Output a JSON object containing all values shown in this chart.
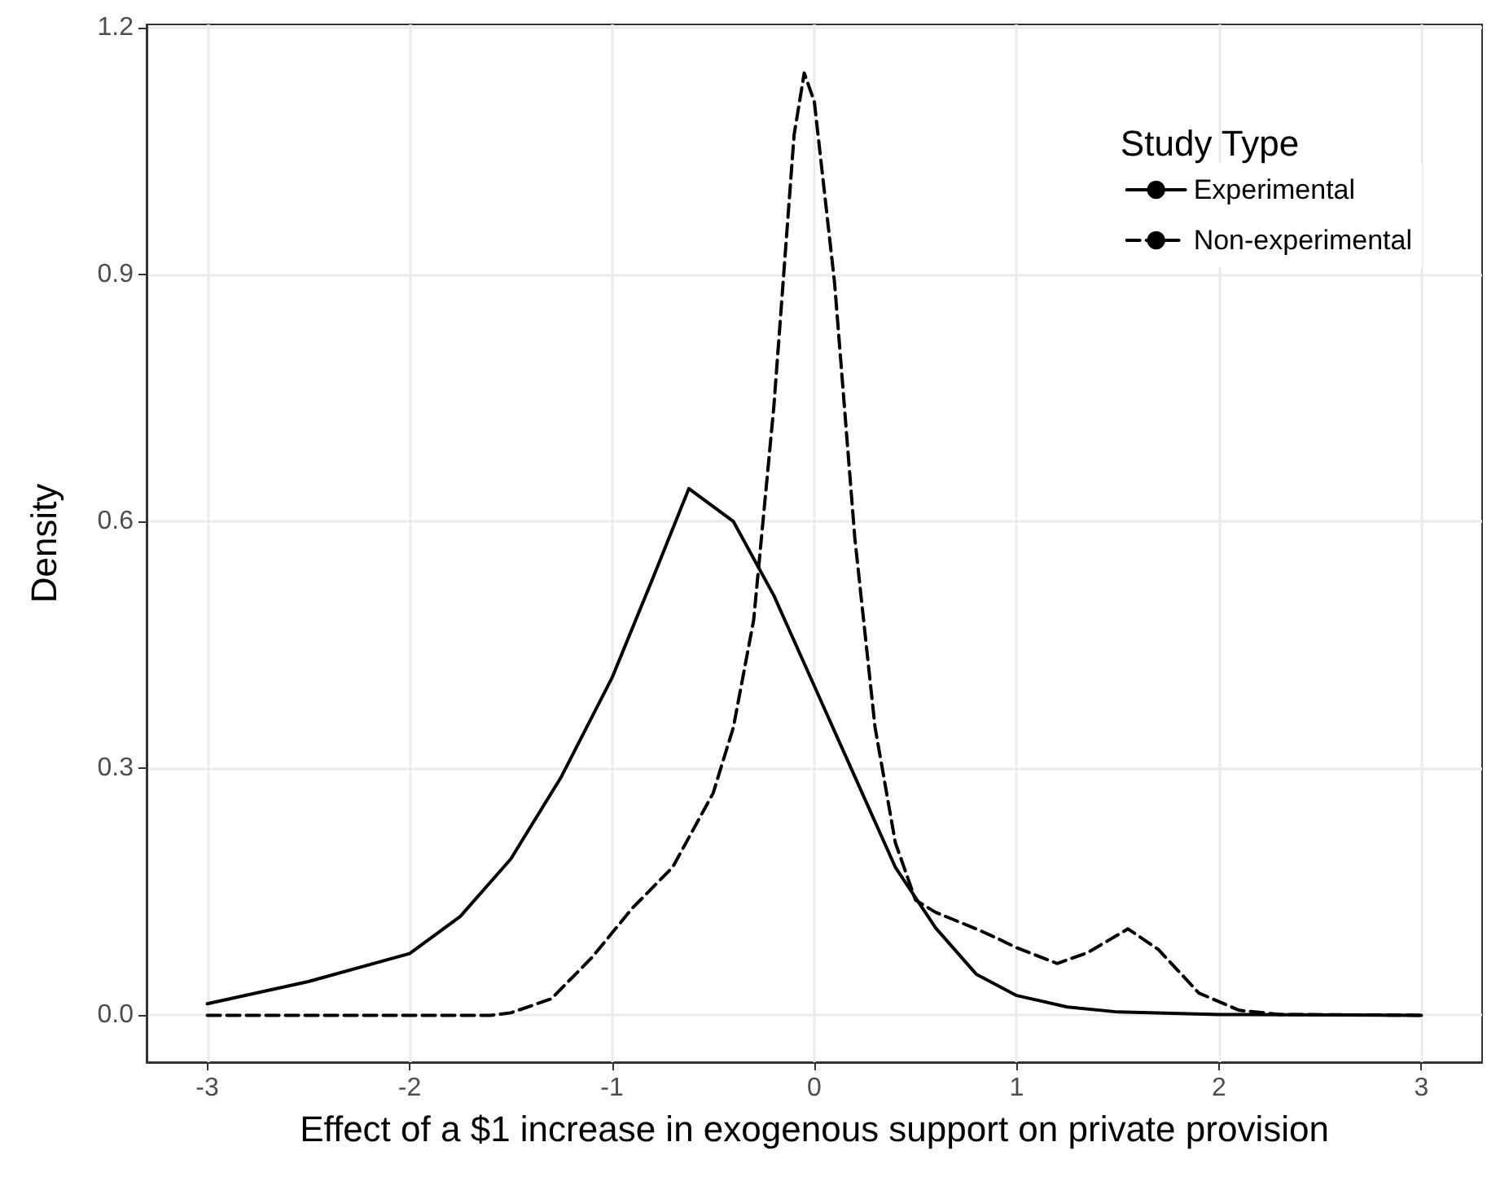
{
  "chart_data": {
    "type": "line",
    "xlabel": "Effect of a $1 increase in exogenous support on private provision",
    "ylabel": "Density",
    "legend_title": "Study Type",
    "legend": "top right",
    "grid": true,
    "marker": "none",
    "xlim": [
      -3.3,
      3.3
    ],
    "ylim": [
      -0.057,
      1.204
    ],
    "xticks": [
      -3,
      -2,
      -1,
      0,
      1,
      2,
      3
    ],
    "yticks": [
      {
        "value": 0,
        "label": "0.0"
      },
      {
        "value": 0.3,
        "label": "0.3"
      },
      {
        "value": 0.6,
        "label": "0.6"
      },
      {
        "value": 0.9,
        "label": "0.9"
      },
      {
        "value": 1.2,
        "label": "1.2"
      }
    ],
    "series": [
      {
        "name": "Experimental",
        "color": "#000000",
        "line_style": "solid",
        "x": [
          -3,
          -2.5,
          -2,
          -1.75,
          -1.5,
          -1.25,
          -1,
          -0.8,
          -0.62,
          -0.4,
          -0.2,
          0,
          0.2,
          0.4,
          0.6,
          0.8,
          1,
          1.25,
          1.5,
          2,
          3
        ],
        "values": [
          0.014,
          0.041,
          0.075,
          0.12,
          0.19,
          0.29,
          0.41,
          0.53,
          0.64,
          0.6,
          0.51,
          0.4,
          0.29,
          0.18,
          0.106,
          0.05,
          0.024,
          0.01,
          0.004,
          0.001,
          0
        ]
      },
      {
        "name": "Non-experimental",
        "color": "#000000",
        "line_style": "dashed",
        "x": [
          -3,
          -1.6,
          -1.5,
          -1.3,
          -1.1,
          -0.9,
          -0.7,
          -0.5,
          -0.4,
          -0.3,
          -0.2,
          -0.1,
          -0.05,
          0,
          0.1,
          0.2,
          0.3,
          0.4,
          0.5,
          0.6,
          0.8,
          0.9,
          1,
          1.2,
          1.35,
          1.55,
          1.7,
          1.9,
          2.1,
          2.3,
          3
        ],
        "values": [
          0,
          0,
          0.003,
          0.02,
          0.07,
          0.13,
          0.18,
          0.27,
          0.35,
          0.48,
          0.74,
          1.07,
          1.145,
          1.11,
          0.89,
          0.58,
          0.35,
          0.21,
          0.14,
          0.125,
          0.105,
          0.094,
          0.082,
          0.063,
          0.076,
          0.105,
          0.08,
          0.027,
          0.006,
          0.001,
          0
        ]
      }
    ]
  }
}
